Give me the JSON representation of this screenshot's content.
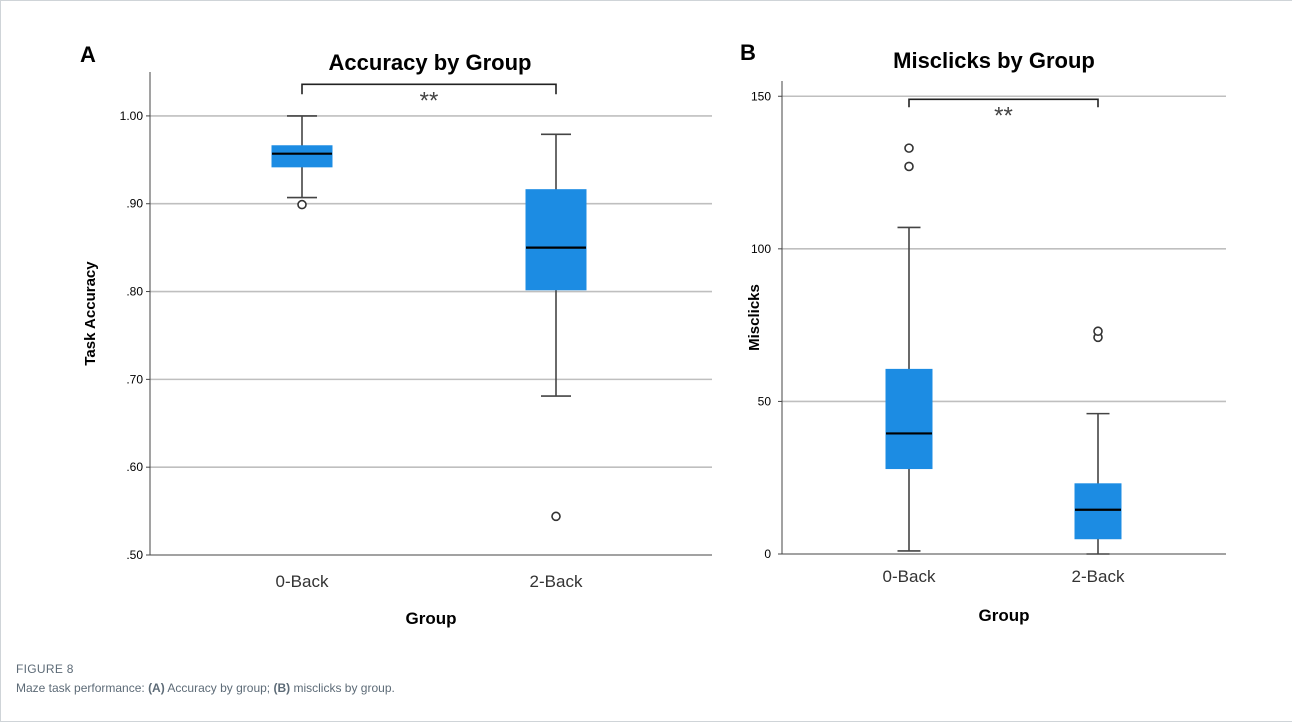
{
  "figure": {
    "label": "FIGURE 8",
    "caption_intro": "Maze task performance: ",
    "caption_a_tag": "(A)",
    "caption_a_text": " Accuracy by group; ",
    "caption_b_tag": "(B)",
    "caption_b_text": " misclicks by group."
  },
  "colors": {
    "box_fill": "#1c8ce3",
    "box_stroke": "#1c8ce3",
    "median": "#000000",
    "whisker": "#444444",
    "grid": "#bfbfbf",
    "axis": "#444444",
    "text": "#000000"
  },
  "chart_data": [
    {
      "panel_label": "A",
      "type": "boxplot",
      "title": "Accuracy by Group",
      "xlabel": "Group",
      "ylabel": "Task Accuracy",
      "ylim": [
        0.5,
        1.05
      ],
      "yticks": [
        0.5,
        0.6,
        0.7,
        0.8,
        0.9,
        1.0
      ],
      "ytick_labels": [
        ".50",
        ".60",
        ".70",
        ".80",
        ".90",
        "1.00"
      ],
      "grid": true,
      "categories": [
        "0-Back",
        "2-Back"
      ],
      "boxes": [
        {
          "min": 0.907,
          "q1": 0.942,
          "median": 0.957,
          "q3": 0.966,
          "max": 1.0,
          "outliers": [
            0.899
          ]
        },
        {
          "min": 0.681,
          "q1": 0.802,
          "median": 0.85,
          "q3": 0.916,
          "max": 0.979,
          "outliers": [
            0.544
          ]
        }
      ],
      "significance": {
        "between": [
          0,
          1
        ],
        "label": "**",
        "y": 1.036
      }
    },
    {
      "panel_label": "B",
      "type": "boxplot",
      "title": "Misclicks by Group",
      "xlabel": "Group",
      "ylabel": "Misclicks",
      "ylim": [
        0,
        155
      ],
      "yticks": [
        0,
        50,
        100,
        150
      ],
      "ytick_labels": [
        "0",
        "50",
        "100",
        "150"
      ],
      "grid": true,
      "categories": [
        "0-Back",
        "2-Back"
      ],
      "boxes": [
        {
          "min": 1,
          "q1": 28,
          "median": 39.5,
          "q3": 60.5,
          "max": 107,
          "outliers": [
            127,
            133
          ]
        },
        {
          "min": 0,
          "q1": 5,
          "median": 14.5,
          "q3": 23,
          "max": 46,
          "outliers": [
            71,
            73
          ]
        }
      ],
      "significance": {
        "between": [
          0,
          1
        ],
        "label": "**",
        "y": 149
      }
    }
  ]
}
